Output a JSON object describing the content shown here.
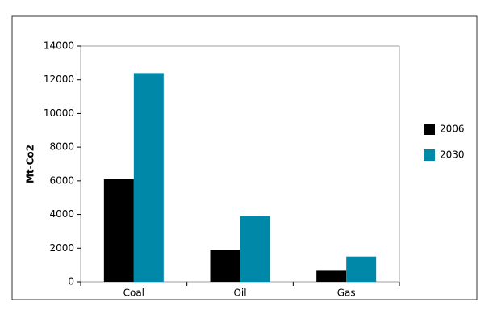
{
  "chart_data": {
    "type": "bar",
    "y_label": "Mt-Co2",
    "categories": [
      "Coal",
      "Oil",
      "Gas"
    ],
    "series": [
      {
        "name": "2006",
        "color": "#000000",
        "values": [
          6100,
          1900,
          700
        ]
      },
      {
        "name": "2030",
        "color": "#0088a8",
        "values": [
          12400,
          3900,
          1500
        ]
      }
    ],
    "ylim": [
      0,
      14000
    ],
    "yticks": [
      0,
      2000,
      4000,
      6000,
      8000,
      10000,
      12000,
      14000
    ],
    "grid": false,
    "legend": "right"
  }
}
